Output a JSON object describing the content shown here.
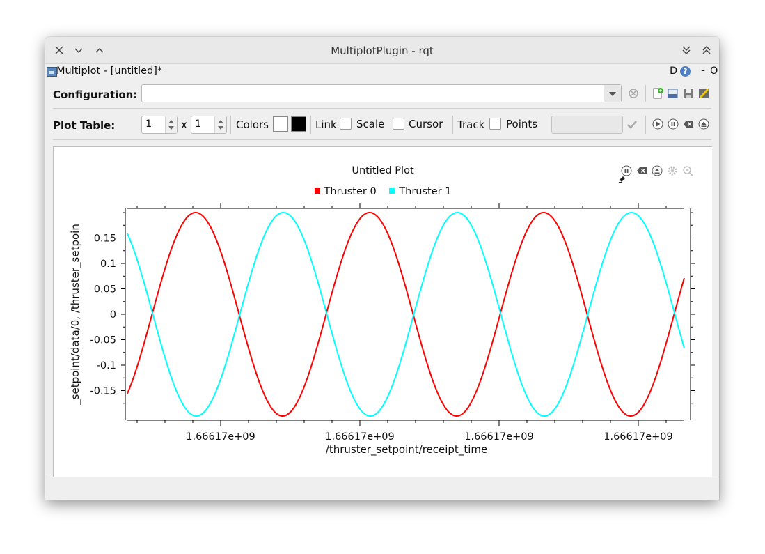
{
  "window": {
    "title": "MultiplotPlugin - rqt"
  },
  "subheader": {
    "document_title": "Multiplot - [untitled]*",
    "d_label": "D",
    "help_label": "?",
    "minimize_label": "-",
    "close_label": "O"
  },
  "config": {
    "label": "Configuration:",
    "value": ""
  },
  "plot_table": {
    "label": "Plot Table:",
    "rows": "1",
    "times": "x",
    "cols": "1",
    "colors_label": "Colors",
    "color_a": "#ffffff",
    "color_b": "#000000",
    "link_label": "Link",
    "scale_label": "Scale",
    "cursor_label": "Cursor",
    "track_label": "Track",
    "points_label": "Points"
  },
  "plot": {
    "title": "Untitled Plot",
    "legend": [
      {
        "name": "Thruster 0",
        "color": "#ff0000"
      },
      {
        "name": "Thruster 1",
        "color": "#00ffff"
      }
    ]
  },
  "chart_data": {
    "type": "line",
    "title": "Untitled Plot",
    "xlabel": "/thruster_setpoint/receipt_time",
    "ylabel": "_setpoint/data/0, /thruster_setpoin",
    "x_tick_labels": [
      "1.66617e+09",
      "1.66617e+09",
      "1.66617e+09",
      "1.66617e+09"
    ],
    "y_ticks": [
      -0.15,
      -0.1,
      -0.05,
      0,
      0.05,
      0.1,
      0.15
    ],
    "y_tick_labels": [
      "-0.15",
      "-0.1",
      "-0.05",
      "0",
      "0.05",
      "0.1",
      "0.15"
    ],
    "ylim": [
      -0.2,
      0.2
    ],
    "period_fraction": 0.3125,
    "series": [
      {
        "name": "Thruster 0",
        "color": "#ff0000",
        "amplitude": 0.2,
        "phase_start": -0.165,
        "peaks_x_frac": [
          0.1225,
          0.4375,
          0.75
        ]
      },
      {
        "name": "Thruster 1",
        "color": "#00ffff",
        "amplitude": 0.2,
        "phase_start": 0.165,
        "peaks_x_frac": [
          0.28,
          0.5925,
          0.9075
        ]
      }
    ],
    "grid": false,
    "legend_position": "top"
  }
}
